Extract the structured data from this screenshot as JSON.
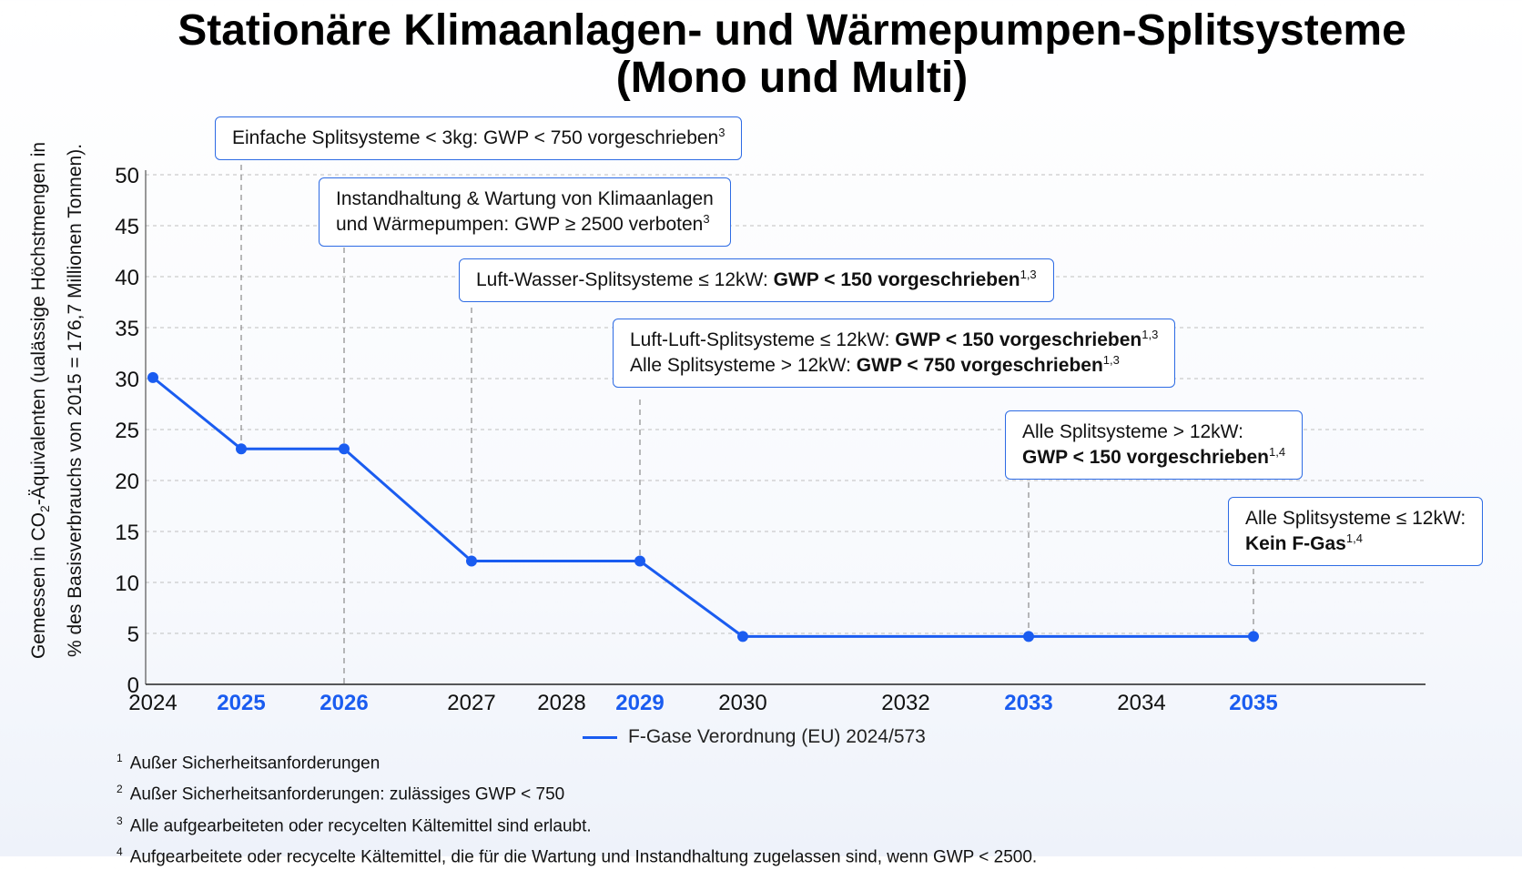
{
  "title_line1": "Stationäre Klimaanlagen- und Wärmepumpen-Splitsysteme",
  "title_line2": "(Mono und Multi)",
  "ylabel_line1_pre": "Gemessen in CO",
  "ylabel_sub": "2",
  "ylabel_line1_post": "-Äquivalenten (ualässige Höchstmengen in",
  "ylabel_line2": "% des Basisverbrauchs von 2015 = 176,7 Millionen Tonnen).",
  "colors": {
    "line": "#1a5cf0",
    "highlight_year": "#1a5cf0",
    "callout_border": "#2d6be4",
    "grid": "#bfbfbf"
  },
  "callouts": {
    "c1": {
      "pre": "Einfache Splitsysteme < 3kg: GWP < 750 vorgeschrieben",
      "sup": "3"
    },
    "c2": {
      "line1": "Instandhaltung & Wartung von Klimaanlagen",
      "line2": "und Wärmepumpen: GWP ≥ 2500 verboten",
      "sup": "3"
    },
    "c3": {
      "pre": "Luft-Wasser-Splitsysteme ≤ 12kW: ",
      "bold": "GWP < 150 vorgeschrieben",
      "sup": "1,3"
    },
    "c4": {
      "l1pre": "Luft-Luft-Splitsysteme ≤ 12kW: ",
      "l1bold": "GWP < 150 vorgeschrieben",
      "l1sup": "1,3",
      "l2pre": "Alle Splitsysteme > 12kW: ",
      "l2bold": "GWP < 750 vorgeschrieben",
      "l2sup": "1,3"
    },
    "c5": {
      "line1": "Alle Splitsysteme > 12kW:",
      "bold": "GWP < 150 vorgeschrieben",
      "sup": "1,4"
    },
    "c6": {
      "line1": "Alle Splitsysteme ≤ 12kW:",
      "bold": "Kein F-Gas",
      "sup": "1,4"
    }
  },
  "legend": {
    "label": "F-Gase Verordnung (EU) 2024/573"
  },
  "footnotes": [
    {
      "num": "1",
      "text": "Außer Sicherheitsanforderungen"
    },
    {
      "num": "2",
      "text": "Außer Sicherheitsanforderungen: zulässiges GWP < 750"
    },
    {
      "num": "3",
      "text": "Alle aufgearbeiteten oder recycelten Kältemittel sind erlaubt."
    },
    {
      "num": "4",
      "text": "Aufgearbeitete oder recycelte Kältemittel, die für die Wartung und Instandhaltung zugelassen sind, wenn GWP < 2500."
    }
  ],
  "chart_data": {
    "type": "line",
    "title": "Stationäre Klimaanlagen- und Wärmepumpen-Splitsysteme (Mono und Multi)",
    "ylabel": "Gemessen in CO2-Äquivalenten (ualässige Höchstmengen in % des Basisverbrauchs von 2015 = 176,7 Millionen Tonnen).",
    "xlabel": "",
    "ylim": [
      0,
      50
    ],
    "yticks": [
      0,
      5,
      10,
      15,
      20,
      25,
      30,
      35,
      40,
      45,
      50
    ],
    "xticks": [
      {
        "label": "2024",
        "x": 2024,
        "highlight": false
      },
      {
        "label": "2025",
        "x": 2025,
        "highlight": true
      },
      {
        "label": "2026",
        "x": 2026,
        "highlight": true
      },
      {
        "label": "2027",
        "x": 2027,
        "highlight": false
      },
      {
        "label": "2028",
        "x": 2028,
        "highlight": false
      },
      {
        "label": "2029",
        "x": 2029,
        "highlight": true
      },
      {
        "label": "2030",
        "x": 2030,
        "highlight": false
      },
      {
        "label": "2032",
        "x": 2032,
        "highlight": false
      },
      {
        "label": "2033",
        "x": 2033,
        "highlight": true
      },
      {
        "label": "2034",
        "x": 2034,
        "highlight": false
      },
      {
        "label": "2035",
        "x": 2035,
        "highlight": true
      }
    ],
    "grid": true,
    "legend_position": "bottom-center",
    "series": [
      {
        "name": "F-Gase Verordnung (EU) 2024/573",
        "points": [
          {
            "x": 2024,
            "y": 30.1
          },
          {
            "x": 2025,
            "y": 23.1
          },
          {
            "x": 2026,
            "y": 23.1
          },
          {
            "x": 2027,
            "y": 12.1
          },
          {
            "x": 2029,
            "y": 12.1
          },
          {
            "x": 2030,
            "y": 4.7
          },
          {
            "x": 2033,
            "y": 4.7
          },
          {
            "x": 2035,
            "y": 4.7
          }
        ]
      }
    ],
    "event_lines": [
      2025,
      2026,
      2027,
      2029,
      2033,
      2035
    ]
  }
}
